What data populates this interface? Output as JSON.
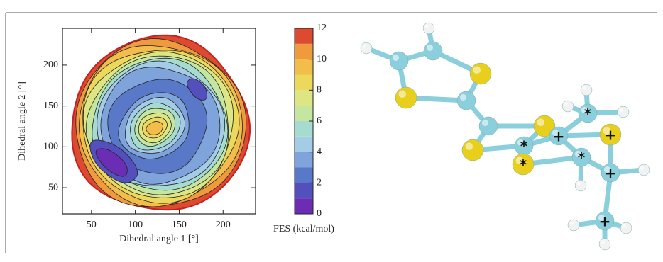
{
  "chart_data": {
    "type": "contour",
    "xlabel": "Dihedral angle 1 [°]",
    "ylabel": "Dihedral angle 2 [°]",
    "xlim": [
      17,
      237
    ],
    "ylim": [
      18,
      245
    ],
    "xticks": [
      50,
      100,
      150,
      200
    ],
    "yticks": [
      50,
      100,
      150,
      200
    ],
    "colorbar": {
      "label": "FES (kcal/mol)",
      "lim": [
        0,
        12
      ],
      "ticks": [
        0,
        2,
        4,
        6,
        8,
        10,
        12
      ],
      "levels": [
        0,
        1,
        2,
        3,
        4,
        5,
        6,
        7,
        8,
        9,
        10,
        11,
        12
      ],
      "colors": [
        "#6a2db4",
        "#5350bd",
        "#5a78c8",
        "#7fa4dc",
        "#a4cce6",
        "#a6dcd0",
        "#c4e6a0",
        "#dde682",
        "#ecd85a",
        "#f2bd4a",
        "#f09a3e",
        "#dc4a30"
      ]
    }
  },
  "molecule": {
    "labels": [
      "*",
      "*",
      "*",
      "*",
      "+",
      "+",
      "+",
      "+"
    ]
  }
}
